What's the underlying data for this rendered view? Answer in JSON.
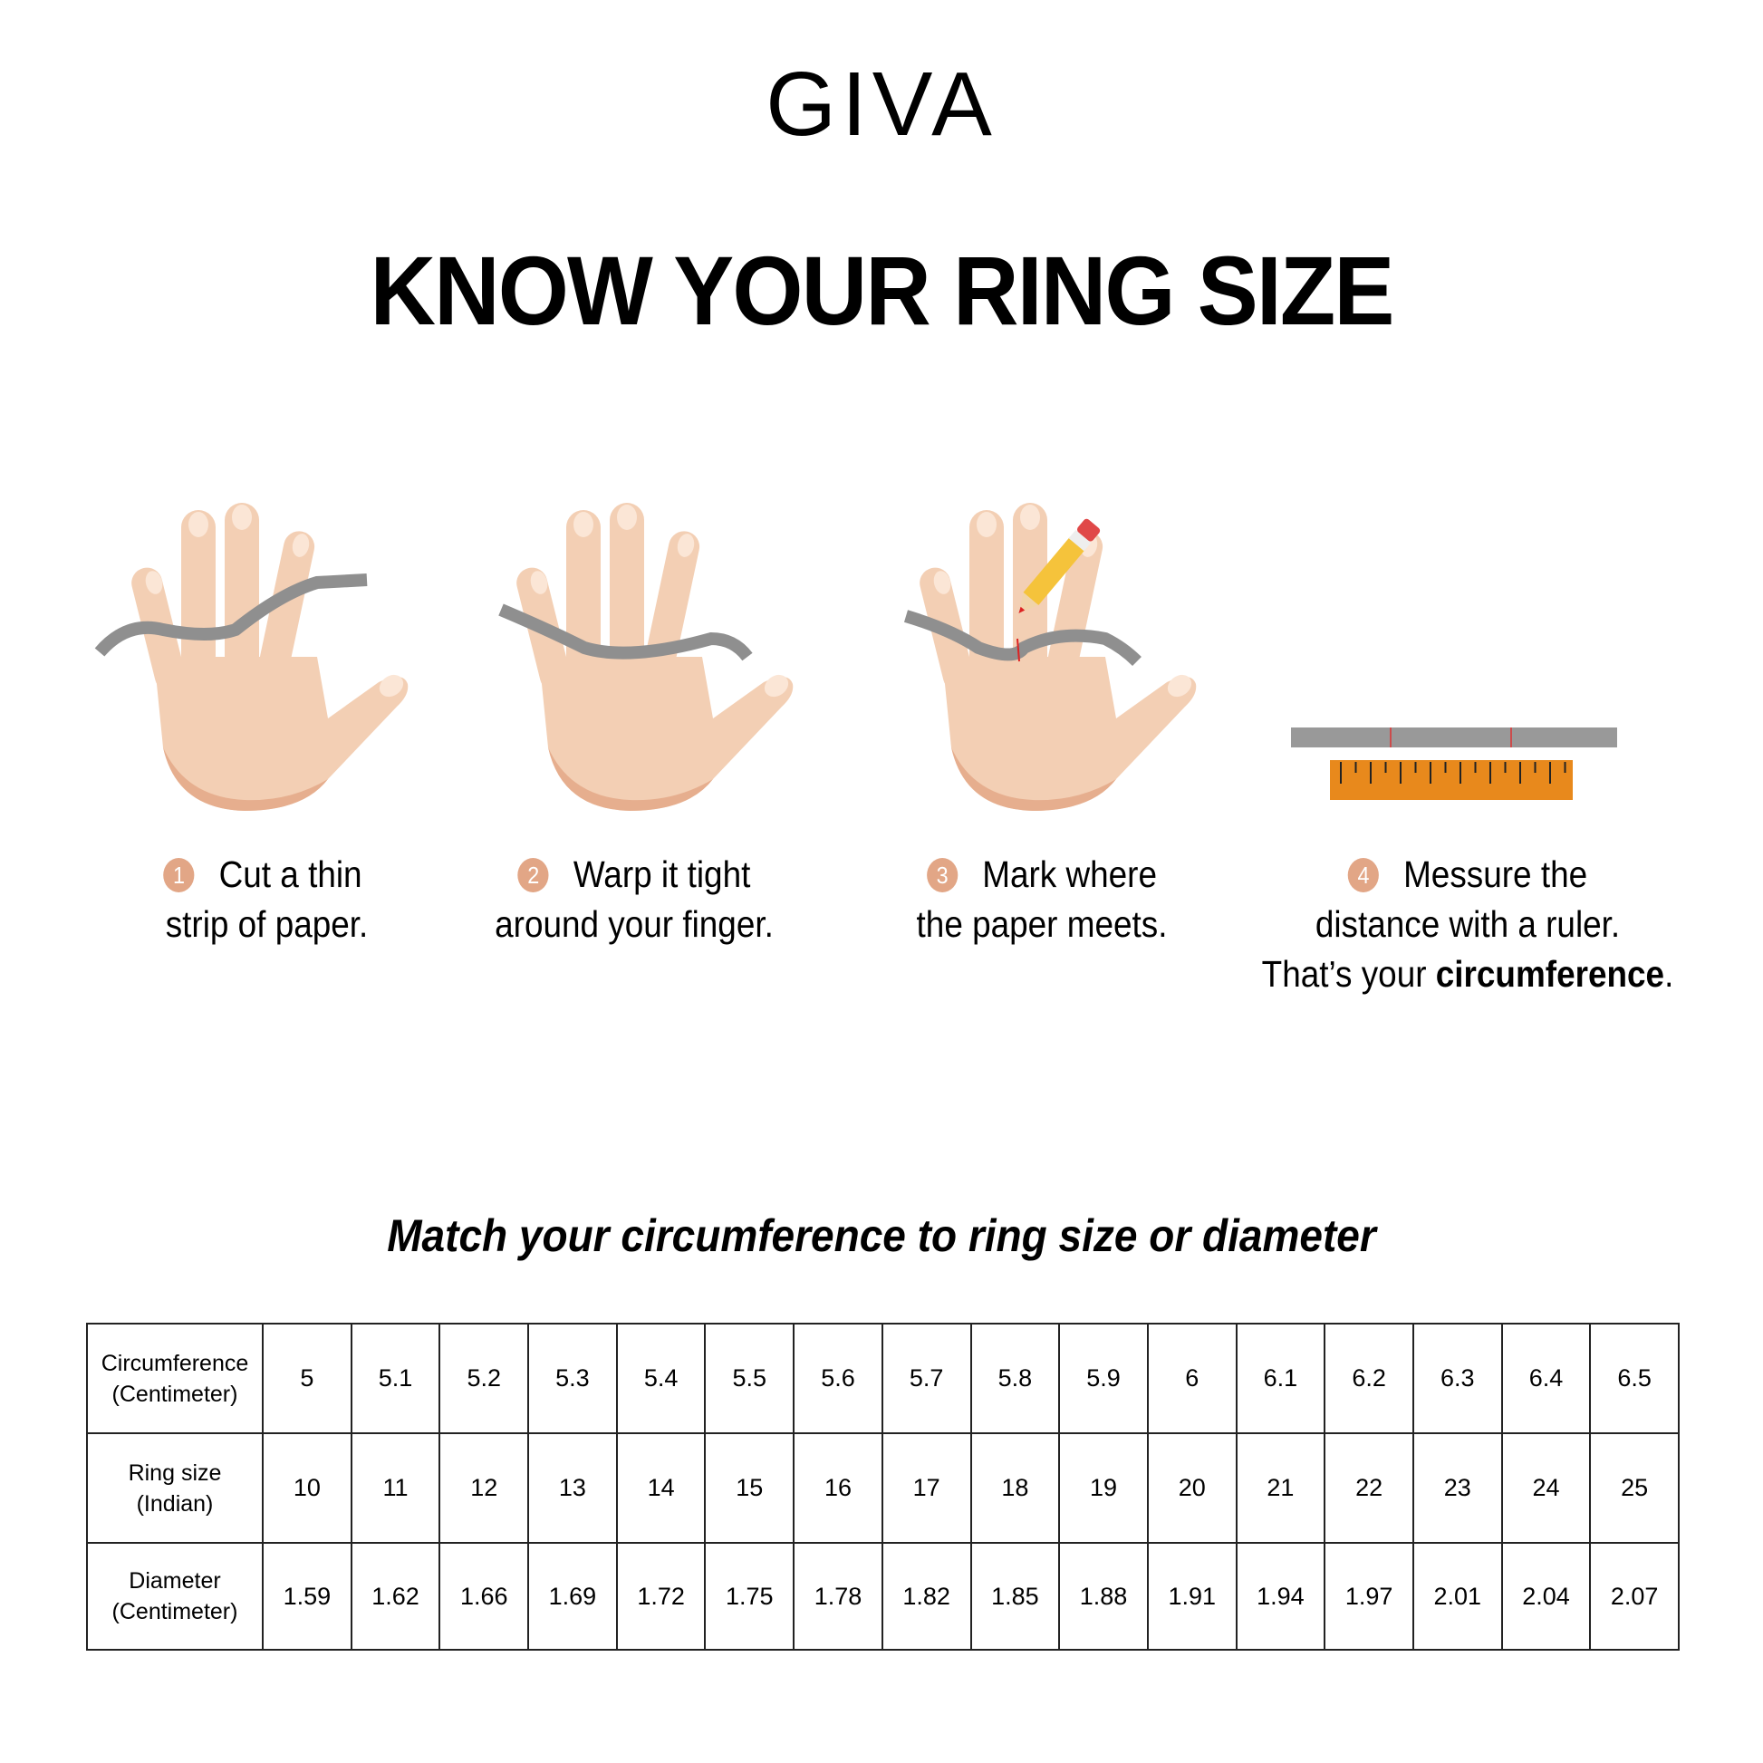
{
  "brand": {
    "logo": "GIVA"
  },
  "title": "KNOW YOUR RING SIZE",
  "steps": [
    {
      "number": "1",
      "line1": "Cut a thin",
      "line2": "strip of paper."
    },
    {
      "number": "2",
      "line1": "Warp it tight",
      "line2": "around your finger."
    },
    {
      "number": "3",
      "line1": "Mark where",
      "line2": "the paper meets."
    },
    {
      "number": "4",
      "line1": "Messure the",
      "line2": "distance with a ruler.",
      "line3_prefix": "That’s your ",
      "line3_bold": "circumference",
      "line3_suffix": "."
    }
  ],
  "subtitle": "Match your circumference to ring size or diameter",
  "table": {
    "rows": [
      {
        "label1": "Circumference",
        "label2": "(Centimeter)",
        "values": [
          "5",
          "5.1",
          "5.2",
          "5.3",
          "5.4",
          "5.5",
          "5.6",
          "5.7",
          "5.8",
          "5.9",
          "6",
          "6.1",
          "6.2",
          "6.3",
          "6.4",
          "6.5"
        ]
      },
      {
        "label1": "Ring size",
        "label2": "(Indian)",
        "values": [
          "10",
          "11",
          "12",
          "13",
          "14",
          "15",
          "16",
          "17",
          "18",
          "19",
          "20",
          "21",
          "22",
          "23",
          "24",
          "25"
        ]
      },
      {
        "label1": "Diameter",
        "label2": "(Centimeter)",
        "values": [
          "1.59",
          "1.62",
          "1.66",
          "1.69",
          "1.72",
          "1.75",
          "1.78",
          "1.82",
          "1.85",
          "1.88",
          "1.91",
          "1.94",
          "1.97",
          "2.01",
          "2.04",
          "2.07"
        ]
      }
    ]
  },
  "colors": {
    "skin": "#f3cfb4",
    "skin_shadow": "#e6ae8e",
    "paper_strip": "#8f8f8f",
    "ruler": "#e8891c",
    "step_badge": "#e2a686"
  }
}
